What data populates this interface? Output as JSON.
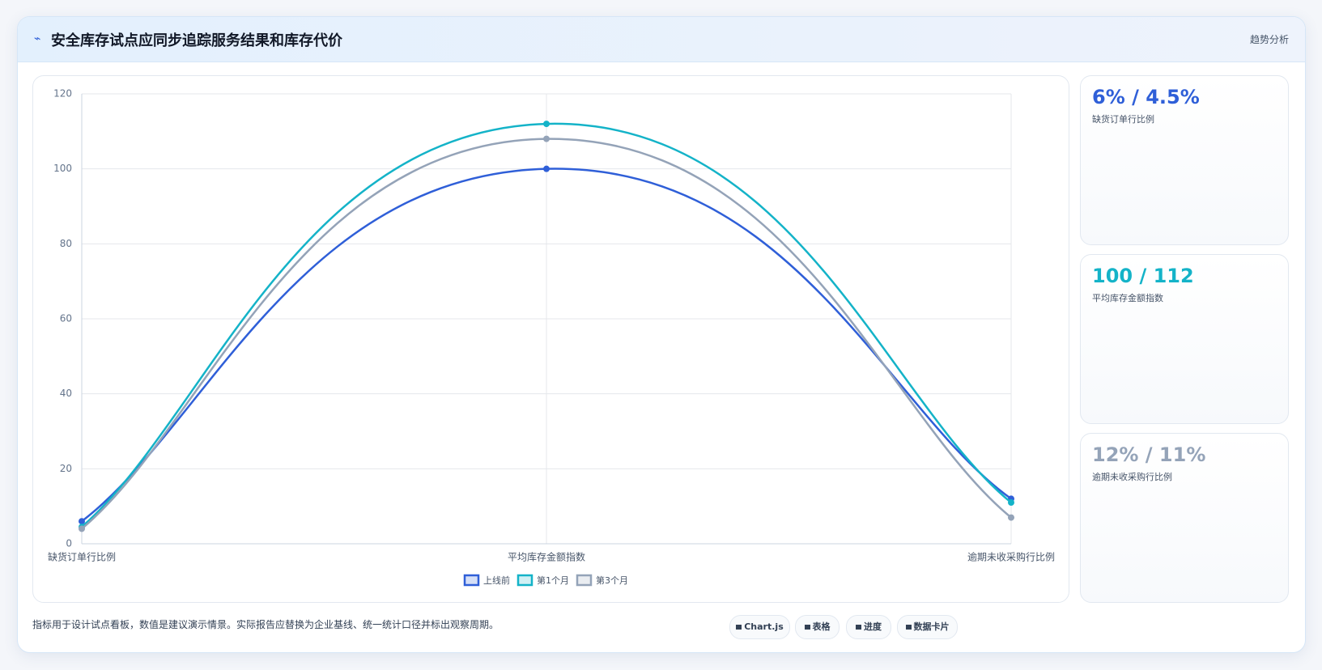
{
  "header": {
    "title": "安全库存试点应同步追踪服务结果和库存代价",
    "action": "趋势分析"
  },
  "chart_data": {
    "type": "line",
    "categories": [
      "缺货订单行比例",
      "平均库存金额指数",
      "逾期未收采购行比例"
    ],
    "series": [
      {
        "name": "上线前",
        "color": "#2f5fd8",
        "values": [
          6,
          100,
          12
        ]
      },
      {
        "name": "第1个月",
        "color": "#14b3c8",
        "values": [
          4.5,
          112,
          11
        ]
      },
      {
        "name": "第3个月",
        "color": "#94a3b8",
        "values": [
          4,
          108,
          7
        ]
      }
    ],
    "ylim": [
      0,
      120
    ],
    "yticks": [
      0,
      20,
      40,
      60,
      80,
      100,
      120
    ],
    "grid": true
  },
  "cards": [
    {
      "value": "6% / 4.5%",
      "label": "缺货订单行比例",
      "color": "#2f5fd8"
    },
    {
      "value": "100 / 112",
      "label": "平均库存金额指数",
      "color": "#14b3c8"
    },
    {
      "value": "12% / 11%",
      "label": "逾期未收采购行比例",
      "color": "#94a3b8"
    }
  ],
  "footer": {
    "note": "指标用于设计试点看板，数值是建议演示情景。实际报告应替换为企业基线、统一统计口径并标出观察周期。",
    "buttons": [
      "Chart.js",
      "表格",
      "进度",
      "数据卡片"
    ]
  }
}
